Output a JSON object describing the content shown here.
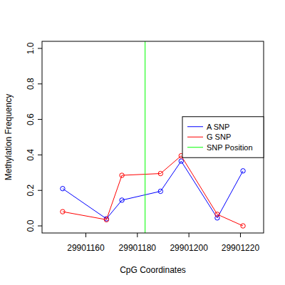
{
  "chart_data": {
    "type": "line",
    "x_label": "CpG Coordinates",
    "y_label": "Methylation Frequency",
    "x": [
      29901151,
      29901168,
      29901174,
      29901189,
      29901197,
      29901211,
      29901221
    ],
    "series": [
      {
        "name": "A SNP",
        "color": "#0000ff",
        "marker": "circle",
        "values": [
          0.21,
          0.04,
          0.145,
          0.195,
          0.365,
          0.045,
          0.31
        ]
      },
      {
        "name": "G SNP",
        "color": "#ff0000",
        "marker": "circle",
        "values": [
          0.08,
          0.035,
          0.285,
          0.295,
          0.395,
          0.065,
          0.0
        ]
      },
      {
        "name": "SNP Position",
        "color": "#00ff00",
        "type": "vline",
        "x": [
          29901183
        ]
      }
    ],
    "xlim": [
      29901143,
      29901229
    ],
    "xticks": [
      29901160,
      29901180,
      29901200,
      29901220
    ],
    "ylim": [
      -0.04,
      1.04
    ],
    "yticks": [
      {
        "value": 0,
        "label": "0.0"
      },
      0.2,
      0.4,
      0.6,
      0.8,
      {
        "value": 1,
        "label": "1.0"
      }
    ],
    "legend": "right"
  }
}
